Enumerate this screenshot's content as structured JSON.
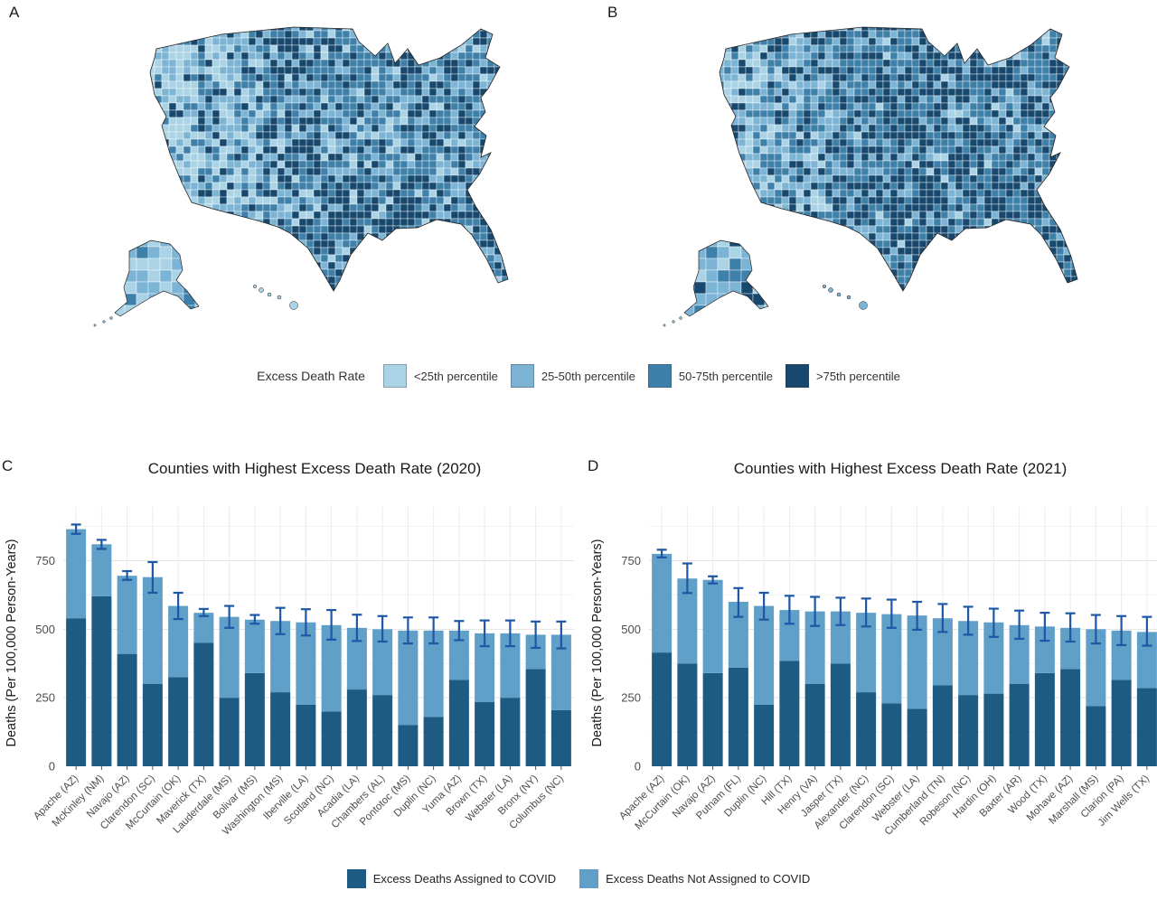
{
  "panel_labels": {
    "a": "A",
    "b": "B",
    "c": "C",
    "d": "D"
  },
  "map_legend": {
    "title": "Excess Death Rate",
    "items": [
      {
        "label": "<25th percentile",
        "color": "#aad4e6"
      },
      {
        "label": "25-50th percentile",
        "color": "#7cb4d6"
      },
      {
        "label": "50-75th percentile",
        "color": "#3d80aa"
      },
      {
        "label": ">75th percentile",
        "color": "#17496f"
      }
    ]
  },
  "maps": {
    "panel_a_type": "US county choropleth",
    "panel_b_type": "US county choropleth",
    "legend_title": "Excess Death Rate"
  },
  "bar_legend": {
    "items": [
      {
        "label": "Excess Deaths Assigned to COVID",
        "color": "#1e5b83"
      },
      {
        "label": "Excess Deaths Not Assigned to COVID",
        "color": "#5f9fc8"
      }
    ]
  },
  "error_bar_color": "#1d57a5",
  "chart_data": [
    {
      "type": "bar",
      "title": "Counties with Highest Excess Death Rate (2020)",
      "xlabel": "",
      "ylabel": "Deaths (Per 100,000 Person-Years)",
      "ylim": [
        0,
        900
      ],
      "yticks": [
        0,
        250,
        500,
        750
      ],
      "grid": true,
      "legend_position": "bottom",
      "categories": [
        "Apache (AZ)",
        "McKinley (NM)",
        "Navajo (AZ)",
        "Clarendon (SC)",
        "McCurtain (OK)",
        "Maverick (TX)",
        "Lauderdale (MS)",
        "Bolivar (MS)",
        "Washington (MS)",
        "Iberville (LA)",
        "Scotland (NC)",
        "Acadia (LA)",
        "Chambers (AL)",
        "Pontotoc (MS)",
        "Duplin (NC)",
        "Yuma (AZ)",
        "Brown (TX)",
        "Webster (LA)",
        "Bronx (NY)",
        "Columbus (NC)"
      ],
      "series": [
        {
          "name": "Excess Deaths Assigned to COVID",
          "values": [
            540,
            620,
            410,
            300,
            325,
            450,
            250,
            340,
            270,
            225,
            200,
            280,
            260,
            150,
            180,
            315,
            235,
            250,
            355,
            205
          ]
        },
        {
          "name": "Excess Deaths Not Assigned to COVID",
          "values": [
            325,
            190,
            285,
            390,
            260,
            110,
            295,
            195,
            260,
            300,
            315,
            225,
            240,
            345,
            315,
            180,
            250,
            235,
            125,
            275
          ]
        }
      ],
      "totals": [
        865,
        810,
        695,
        690,
        585,
        560,
        545,
        535,
        530,
        525,
        515,
        505,
        500,
        495,
        495,
        495,
        485,
        485,
        480,
        480
      ],
      "error_low": [
        848,
        793,
        680,
        633,
        537,
        548,
        505,
        520,
        482,
        477,
        462,
        457,
        455,
        448,
        448,
        460,
        438,
        438,
        432,
        430
      ],
      "error_high": [
        882,
        826,
        712,
        745,
        633,
        574,
        585,
        552,
        578,
        573,
        570,
        553,
        548,
        543,
        543,
        530,
        532,
        532,
        528,
        528
      ]
    },
    {
      "type": "bar",
      "title": "Counties with Highest Excess Death Rate (2021)",
      "xlabel": "",
      "ylabel": "Deaths (Per 100,000 Person-Years)",
      "ylim": [
        0,
        900
      ],
      "yticks": [
        0,
        250,
        500,
        750
      ],
      "grid": true,
      "legend_position": "bottom",
      "categories": [
        "Apache (AZ)",
        "McCurtain (OK)",
        "Navajo (AZ)",
        "Putnam (FL)",
        "Duplin (NC)",
        "Hill (TX)",
        "Henry (VA)",
        "Jasper (TX)",
        "Alexander (NC)",
        "Clarendon (SC)",
        "Webster (LA)",
        "Cumberland (TN)",
        "Robeson (NC)",
        "Hardin (OH)",
        "Baxter (AR)",
        "Wood (TX)",
        "Mohave (AZ)",
        "Marshall (MS)",
        "Clarion (PA)",
        "Jim Wells (TX)"
      ],
      "series": [
        {
          "name": "Excess Deaths Assigned to COVID",
          "values": [
            415,
            375,
            340,
            360,
            225,
            385,
            300,
            375,
            270,
            230,
            210,
            295,
            260,
            265,
            300,
            340,
            355,
            220,
            315,
            285
          ]
        },
        {
          "name": "Excess Deaths Not Assigned to COVID",
          "values": [
            360,
            310,
            340,
            240,
            360,
            185,
            265,
            190,
            290,
            325,
            340,
            245,
            270,
            260,
            215,
            170,
            150,
            280,
            180,
            205
          ]
        }
      ],
      "totals": [
        775,
        685,
        680,
        600,
        585,
        570,
        565,
        565,
        560,
        555,
        550,
        540,
        530,
        525,
        515,
        510,
        505,
        500,
        495,
        490
      ],
      "error_low": [
        762,
        632,
        667,
        545,
        535,
        520,
        512,
        515,
        510,
        505,
        498,
        490,
        480,
        472,
        465,
        458,
        455,
        448,
        442,
        440
      ],
      "error_high": [
        790,
        740,
        693,
        650,
        633,
        622,
        618,
        615,
        612,
        608,
        600,
        592,
        582,
        575,
        568,
        560,
        558,
        552,
        548,
        545
      ]
    }
  ]
}
